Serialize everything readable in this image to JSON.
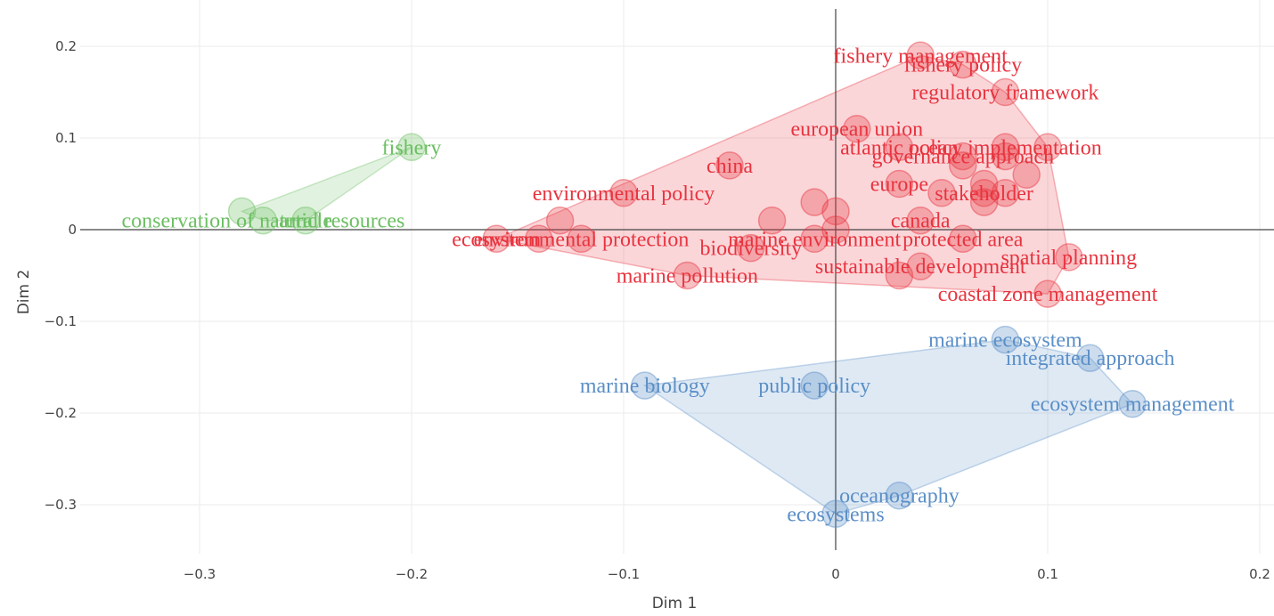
{
  "chart_data": {
    "type": "scatter",
    "title": "",
    "xlabel": "Dim 1",
    "ylabel": "Dim 2",
    "xlim": [
      -0.36,
      0.21
    ],
    "ylim": [
      -0.37,
      0.23
    ],
    "xticks": [
      -0.3,
      -0.2,
      -0.1,
      0,
      0.1,
      0.2
    ],
    "yticks": [
      -0.3,
      -0.2,
      -0.1,
      0,
      0.1,
      0.2
    ],
    "xtick_labels": [
      "−0.3",
      "−0.2",
      "−0.1",
      "0",
      "0.1",
      "0.2"
    ],
    "ytick_labels": [
      "−0.3",
      "−0.2",
      "−0.1",
      "0",
      "0.1",
      "0.2"
    ],
    "grid": true,
    "zero_lines": true,
    "legend": "none",
    "series": [
      {
        "color": "#e8343f",
        "points": [
          {
            "x": 0.04,
            "y": 0.19,
            "label": "fishery management"
          },
          {
            "x": 0.06,
            "y": 0.18,
            "label": "fishery policy"
          },
          {
            "x": 0.08,
            "y": 0.15,
            "label": "regulatory framework"
          },
          {
            "x": 0.01,
            "y": 0.11,
            "label": "european union"
          },
          {
            "x": 0.03,
            "y": 0.09,
            "label": "atlantic ocean"
          },
          {
            "x": 0.08,
            "y": 0.09,
            "label": "policy implementation"
          },
          {
            "x": 0.06,
            "y": 0.08,
            "label": "governance approach"
          },
          {
            "x": -0.05,
            "y": 0.07,
            "label": "china"
          },
          {
            "x": -0.1,
            "y": 0.04,
            "label": "environmental policy"
          },
          {
            "x": 0.03,
            "y": 0.05,
            "label": "europe"
          },
          {
            "x": 0.07,
            "y": 0.04,
            "label": "stakeholder"
          },
          {
            "x": 0.04,
            "y": 0.01,
            "label": "canada"
          },
          {
            "x": -0.16,
            "y": -0.01,
            "label": "ecosystem"
          },
          {
            "x": -0.12,
            "y": -0.01,
            "label": "environmental protection"
          },
          {
            "x": -0.01,
            "y": -0.01,
            "label": "marine environment"
          },
          {
            "x": -0.04,
            "y": -0.02,
            "label": "biodiversity"
          },
          {
            "x": 0.06,
            "y": -0.01,
            "label": "protected area"
          },
          {
            "x": 0.11,
            "y": -0.03,
            "label": "spatial planning"
          },
          {
            "x": -0.07,
            "y": -0.05,
            "label": "marine pollution"
          },
          {
            "x": 0.04,
            "y": -0.04,
            "label": "sustainable development"
          },
          {
            "x": 0.1,
            "y": -0.07,
            "label": "coastal zone management"
          },
          {
            "x": 0.06,
            "y": 0.07,
            "label": ""
          },
          {
            "x": 0.07,
            "y": 0.05,
            "label": ""
          },
          {
            "x": 0.08,
            "y": 0.08,
            "label": ""
          },
          {
            "x": 0.09,
            "y": 0.06,
            "label": ""
          },
          {
            "x": 0.08,
            "y": 0.04,
            "label": ""
          },
          {
            "x": 0.07,
            "y": 0.03,
            "label": ""
          },
          {
            "x": 0.05,
            "y": 0.04,
            "label": ""
          },
          {
            "x": 0.1,
            "y": 0.09,
            "label": ""
          },
          {
            "x": -0.01,
            "y": 0.03,
            "label": ""
          },
          {
            "x": -0.03,
            "y": 0.01,
            "label": ""
          },
          {
            "x": 0.0,
            "y": 0.0,
            "label": ""
          },
          {
            "x": -0.13,
            "y": 0.01,
            "label": ""
          },
          {
            "x": -0.14,
            "y": -0.01,
            "label": ""
          },
          {
            "x": 0.03,
            "y": -0.05,
            "label": ""
          },
          {
            "x": 0.0,
            "y": 0.02,
            "label": ""
          }
        ]
      },
      {
        "color": "#6cbf63",
        "points": [
          {
            "x": -0.2,
            "y": 0.09,
            "label": "fishery"
          },
          {
            "x": -0.27,
            "y": 0.01,
            "label": "conservation of natural resources"
          },
          {
            "x": -0.25,
            "y": 0.01,
            "label": "article"
          },
          {
            "x": -0.28,
            "y": 0.02,
            "label": ""
          }
        ]
      },
      {
        "color": "#5b8fc7",
        "points": [
          {
            "x": 0.08,
            "y": -0.12,
            "label": "marine ecosystem"
          },
          {
            "x": 0.12,
            "y": -0.14,
            "label": "integrated approach"
          },
          {
            "x": -0.09,
            "y": -0.17,
            "label": "marine biology"
          },
          {
            "x": -0.01,
            "y": -0.17,
            "label": "public policy"
          },
          {
            "x": 0.14,
            "y": -0.19,
            "label": "ecosystem management"
          },
          {
            "x": 0.03,
            "y": -0.29,
            "label": "oceanography"
          },
          {
            "x": 0.0,
            "y": -0.31,
            "label": "ecosystems"
          }
        ]
      }
    ]
  }
}
